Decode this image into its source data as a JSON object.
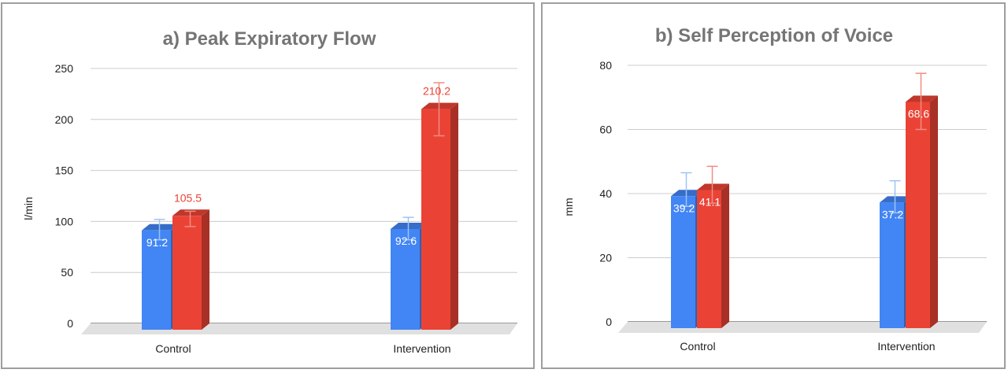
{
  "chart_data": [
    {
      "type": "bar",
      "title": "a) Peak Expiratory Flow",
      "ylabel": "l/min",
      "xlabel": "",
      "ylim": [
        0,
        250
      ],
      "yticks": [
        "0",
        "50",
        "100",
        "150",
        "200",
        "250"
      ],
      "categories": [
        "Control",
        "Intervention"
      ],
      "series": [
        {
          "color": "#4285f4",
          "label_color": "#ffffff",
          "label_position": "inside",
          "values": [
            91.2,
            92.6
          ],
          "labels": [
            "91.2",
            "92.6"
          ],
          "error_high": [
            102,
            104
          ],
          "error_low": [
            82,
            82
          ]
        },
        {
          "color": "#ea4335",
          "label_color": "#ea4335",
          "label_position": "above",
          "values": [
            105.5,
            210.2
          ],
          "labels": [
            "105.5",
            "210.2"
          ],
          "error_high": [
            110,
            236
          ],
          "error_low": [
            95,
            184
          ]
        }
      ],
      "grid": true,
      "style": "3d"
    },
    {
      "type": "bar",
      "title": "b) Self Perception of Voice",
      "ylabel": "mm",
      "xlabel": "",
      "ylim": [
        0,
        80
      ],
      "yticks": [
        "0",
        "20",
        "40",
        "60",
        "80"
      ],
      "categories": [
        "Control",
        "Intervention"
      ],
      "series": [
        {
          "color": "#4285f4",
          "label_color": "#ffffff",
          "label_position": "inside",
          "values": [
            39.2,
            37.2
          ],
          "labels": [
            "39.2",
            "37.2"
          ],
          "error_high": [
            46.5,
            44
          ],
          "error_low": [
            36,
            34
          ]
        },
        {
          "color": "#ea4335",
          "label_color": "#ffffff",
          "label_position": "inside",
          "values": [
            41.1,
            68.6
          ],
          "labels": [
            "41.1",
            "68.6"
          ],
          "error_high": [
            48.5,
            77.5
          ],
          "error_low": [
            37,
            60
          ]
        }
      ],
      "grid": true,
      "style": "3d"
    }
  ]
}
